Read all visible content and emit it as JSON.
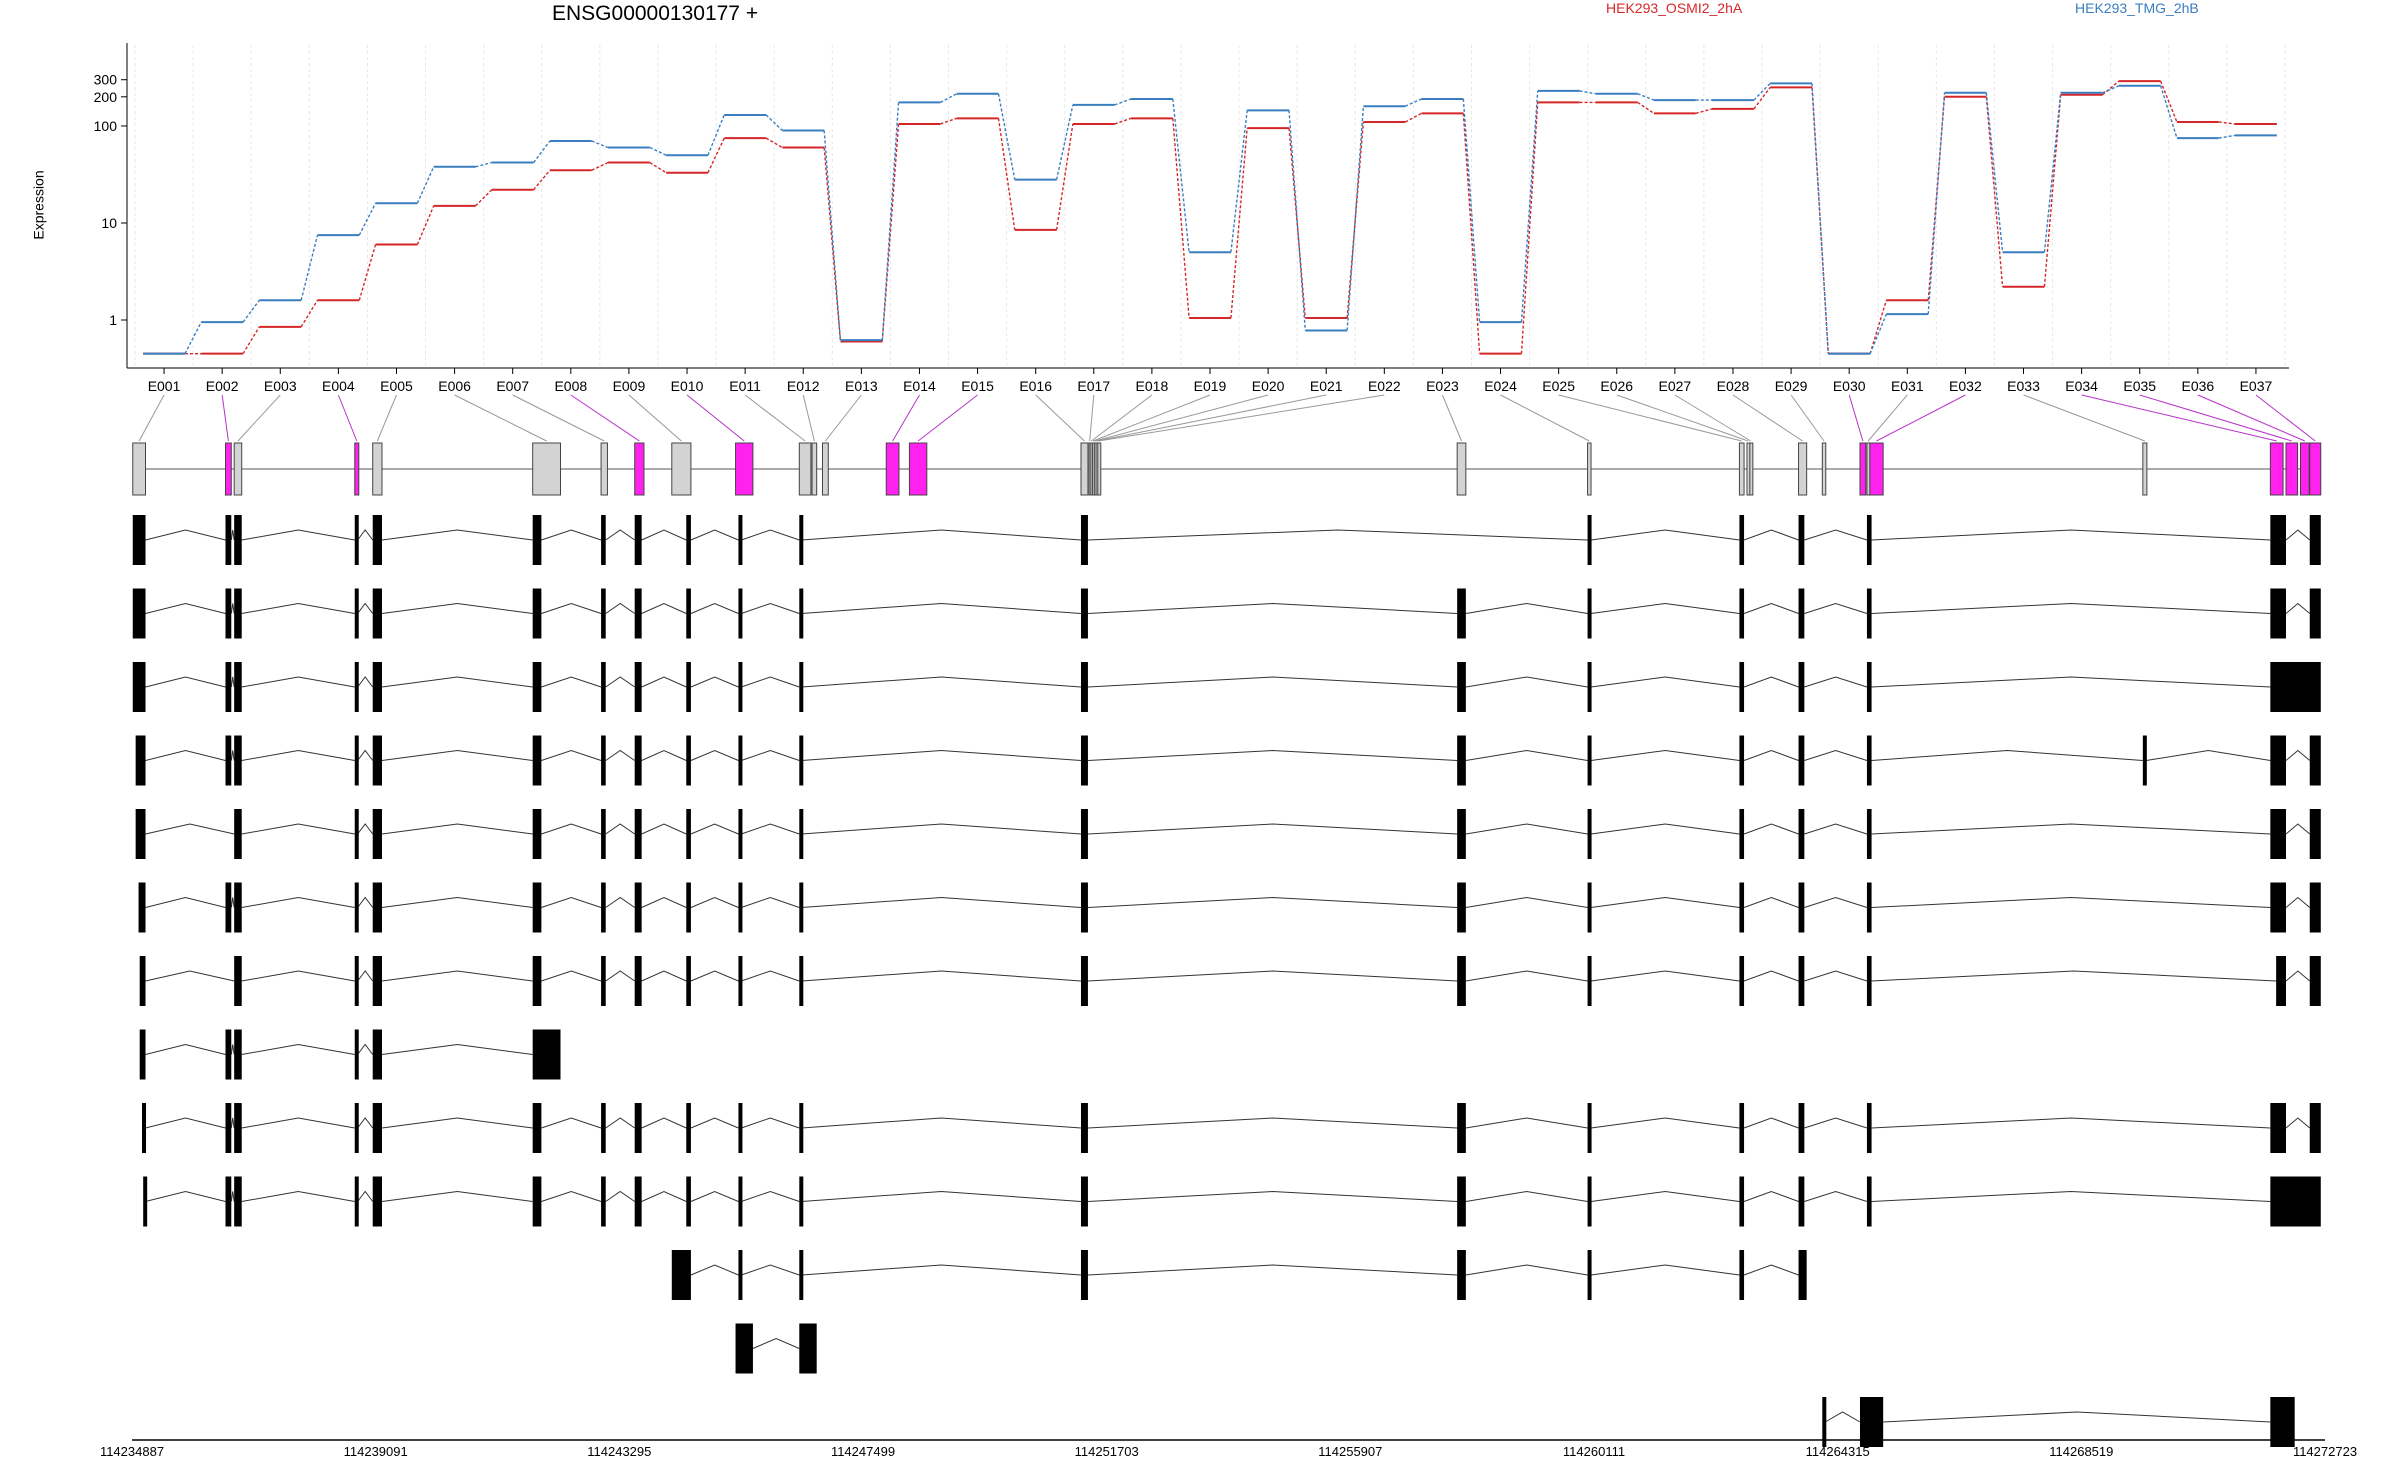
{
  "gene_title": "ENSG00000130177 +",
  "legend": [
    {
      "label": "HEK293_OSMI2_2hA",
      "color": "#d62728"
    },
    {
      "label": "HEK293_TMG_2hB",
      "color": "#3a7ec0"
    }
  ],
  "ylabel": "Expression",
  "chart_data": [
    {
      "type": "line",
      "title": "ENSG00000130177 +",
      "xlabel": "",
      "ylabel": "Expression",
      "y_scale": "log",
      "ylim": [
        0.45,
        350
      ],
      "y_ticks": [
        "1",
        "10",
        "100",
        "200",
        "300"
      ],
      "categories": [
        "E001",
        "E002",
        "E003",
        "E004",
        "E005",
        "E006",
        "E007",
        "E008",
        "E009",
        "E010",
        "E011",
        "E012",
        "E013",
        "E014",
        "E015",
        "E016",
        "E017",
        "E018",
        "E019",
        "E020",
        "E021",
        "E022",
        "E023",
        "E024",
        "E025",
        "E026",
        "E027",
        "E028",
        "E029",
        "E030",
        "E031",
        "E032",
        "E033",
        "E034",
        "E035",
        "E036",
        "E037"
      ],
      "series": [
        {
          "name": "HEK293_OSMI2_2hA",
          "color": "#d62728",
          "values": [
            0.45,
            0.45,
            0.85,
            1.6,
            6,
            15,
            22,
            35,
            42,
            33,
            75,
            60,
            0.6,
            105,
            120,
            8.5,
            105,
            120,
            1.05,
            95,
            1.05,
            110,
            135,
            0.45,
            175,
            175,
            135,
            150,
            250,
            0.45,
            1.6,
            200,
            2.2,
            210,
            290,
            110,
            105
          ]
        },
        {
          "name": "HEK293_TMG_2hB",
          "color": "#3a7ec0",
          "values": [
            0.45,
            0.95,
            1.6,
            7.5,
            16,
            38,
            42,
            70,
            60,
            50,
            130,
            90,
            0.62,
            175,
            215,
            28,
            165,
            190,
            5,
            145,
            0.78,
            160,
            190,
            0.95,
            230,
            215,
            185,
            185,
            275,
            0.45,
            1.15,
            220,
            5,
            220,
            260,
            75,
            80
          ]
        }
      ],
      "grid": "vertical dashed at exon positions",
      "legend_position": "top"
    },
    {
      "type": "gene-structure",
      "x_ticks": [
        "114234887",
        "114239091",
        "114243295",
        "114247499",
        "114251703",
        "114255907",
        "114260111",
        "114264315",
        "114268519",
        "114272723"
      ],
      "highlight_color": "#ff22ee",
      "exon_colors": [
        "gray",
        "magenta",
        "gray",
        "magenta",
        "gray",
        "gray",
        "gray",
        "magenta",
        "gray",
        "magenta",
        "gray",
        "gray",
        "gray",
        "magenta",
        "magenta",
        "gray",
        "gray",
        "gray",
        "gray",
        "gray",
        "gray",
        "gray",
        "gray",
        "gray",
        "gray",
        "gray",
        "gray",
        "gray",
        "gray",
        "magenta",
        "gray",
        "magenta",
        "gray",
        "magenta",
        "magenta",
        "magenta",
        "magenta"
      ],
      "transcript_count": 13
    }
  ]
}
